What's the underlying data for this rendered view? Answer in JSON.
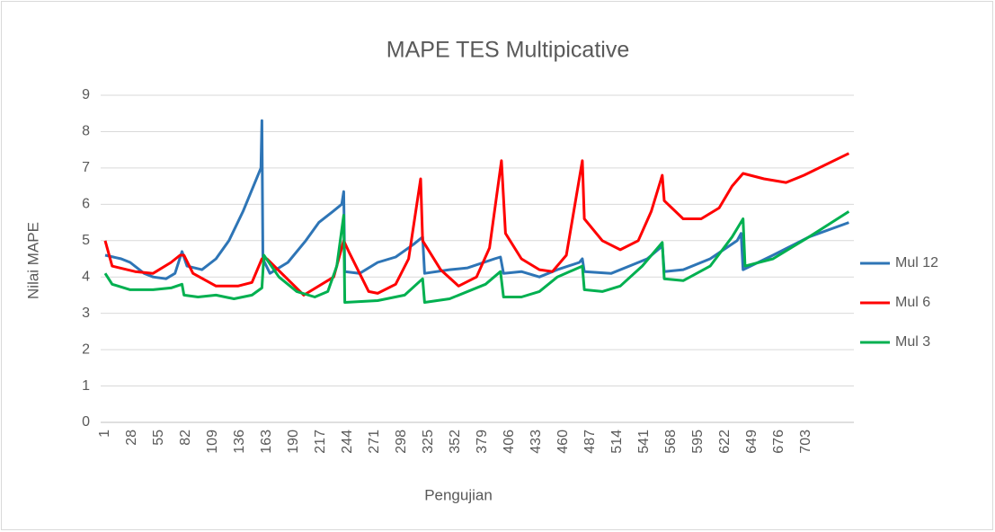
{
  "chart_data": {
    "type": "line",
    "title": "MAPE TES Multipicative",
    "xlabel": "Pengujian",
    "ylabel": "Nilai MAPE",
    "xlim": [
      -3.5,
      751
    ],
    "ylim": [
      0,
      9
    ],
    "xticks": [
      1,
      28,
      55,
      82,
      109,
      136,
      163,
      190,
      217,
      244,
      271,
      298,
      325,
      352,
      379,
      406,
      433,
      460,
      487,
      514,
      541,
      568,
      595,
      622,
      649,
      676,
      703
    ],
    "yticks": [
      0,
      1,
      2,
      3,
      4,
      5,
      6,
      7,
      8,
      9
    ],
    "grid": true,
    "legend": "right",
    "series": [
      {
        "name": "Mul 12",
        "color": "#2e75b6",
        "x": [
          1,
          17,
          26,
          40,
          49,
          62,
          71,
          78,
          83,
          98,
          112,
          125,
          139,
          157,
          158,
          159,
          166,
          184,
          202,
          215,
          229,
          238,
          240,
          241,
          256,
          274,
          292,
          310,
          319,
          321,
          346,
          364,
          391,
          397,
          400,
          418,
          436,
          454,
          476,
          479,
          481,
          508,
          526,
          544,
          557,
          559,
          561,
          580,
          607,
          634,
          638,
          640,
          670,
          706,
          746
        ],
        "values": [
          4.6,
          4.5,
          4.4,
          4.1,
          4.0,
          3.95,
          4.1,
          4.7,
          4.3,
          4.2,
          4.5,
          5.0,
          5.8,
          7.0,
          8.3,
          4.5,
          4.1,
          4.4,
          5.0,
          5.5,
          5.8,
          6.0,
          6.35,
          4.15,
          4.1,
          4.4,
          4.55,
          4.9,
          5.1,
          4.1,
          4.2,
          4.25,
          4.5,
          4.55,
          4.1,
          4.15,
          4.0,
          4.2,
          4.4,
          4.5,
          4.15,
          4.1,
          4.3,
          4.5,
          4.8,
          4.9,
          4.15,
          4.2,
          4.5,
          5.0,
          5.2,
          4.2,
          4.6,
          5.1,
          5.5
        ]
      },
      {
        "name": "Mul 6",
        "color": "#ff0000",
        "x": [
          1,
          8,
          31,
          49,
          67,
          76,
          80,
          89,
          112,
          134,
          148,
          158,
          163,
          200,
          230,
          240,
          245,
          265,
          274,
          292,
          305,
          317,
          319,
          337,
          355,
          373,
          386,
          398,
          402,
          418,
          436,
          449,
          463,
          479,
          481,
          499,
          517,
          535,
          548,
          559,
          561,
          580,
          598,
          616,
          629,
          640,
          661,
          683,
          701,
          746
        ],
        "values": [
          5.0,
          4.3,
          4.15,
          4.1,
          4.4,
          4.6,
          4.6,
          4.1,
          3.75,
          3.75,
          3.85,
          4.5,
          4.5,
          3.5,
          4.0,
          5.0,
          4.7,
          3.6,
          3.55,
          3.8,
          4.5,
          6.7,
          5.0,
          4.2,
          3.75,
          4.0,
          4.8,
          7.2,
          5.2,
          4.5,
          4.2,
          4.15,
          4.6,
          7.2,
          5.6,
          5.0,
          4.75,
          5.0,
          5.8,
          6.8,
          6.1,
          5.6,
          5.6,
          5.9,
          6.5,
          6.85,
          6.7,
          6.6,
          6.8,
          7.4
        ]
      },
      {
        "name": "Mul 3",
        "color": "#00b050",
        "x": [
          1,
          8,
          26,
          49,
          67,
          78,
          80,
          94,
          112,
          130,
          148,
          158,
          160,
          175,
          193,
          211,
          224,
          233,
          240,
          241,
          274,
          301,
          319,
          321,
          346,
          382,
          397,
          400,
          418,
          436,
          454,
          479,
          481,
          499,
          517,
          539,
          559,
          561,
          580,
          607,
          629,
          640,
          642,
          670,
          706,
          746
        ],
        "values": [
          4.1,
          3.8,
          3.65,
          3.65,
          3.7,
          3.8,
          3.5,
          3.45,
          3.5,
          3.4,
          3.5,
          3.7,
          4.6,
          4.0,
          3.6,
          3.45,
          3.6,
          4.3,
          5.7,
          3.3,
          3.35,
          3.5,
          3.95,
          3.3,
          3.4,
          3.8,
          4.15,
          3.45,
          3.45,
          3.6,
          4.0,
          4.3,
          3.65,
          3.6,
          3.75,
          4.3,
          4.95,
          3.95,
          3.9,
          4.3,
          5.1,
          5.6,
          4.3,
          4.5,
          5.1,
          5.8
        ]
      }
    ]
  }
}
